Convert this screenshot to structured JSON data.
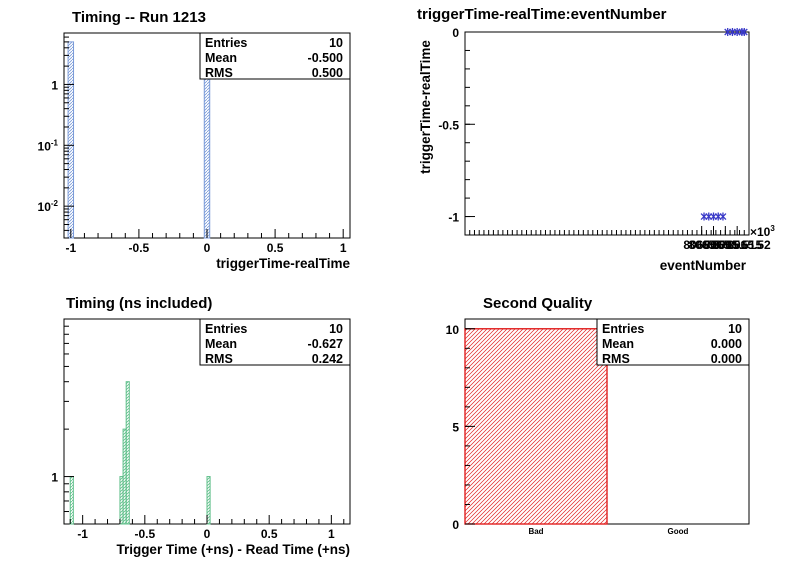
{
  "chart_data": [
    {
      "type": "bar",
      "title": "Timing -- Run 1213",
      "xlabel": "triggerTime-realTime",
      "ylabel": "",
      "log_y": true,
      "xlim": [
        -1.05,
        1.05
      ],
      "ylim": [
        0.003,
        7
      ],
      "xticks": [
        "-1",
        "-0.5",
        "0",
        "0.5",
        "1"
      ],
      "xtick_values": [
        -1,
        -0.5,
        0,
        0.5,
        1
      ],
      "yticks": [
        {
          "value": 0.01,
          "base": "10",
          "exp": "-2"
        },
        {
          "value": 0.1,
          "base": "10",
          "exp": "-1"
        },
        {
          "value": 1,
          "base": "1",
          "exp": ""
        }
      ],
      "bins": [
        {
          "x0": -1.02,
          "x1": -0.98,
          "value": 5
        },
        {
          "x0": -0.02,
          "x1": 0.02,
          "value": 5
        }
      ],
      "fill": "#ffffff",
      "line_color": "#7a9ad8",
      "hatch_color": "#7a9ad8",
      "stats": [
        {
          "label": "Entries",
          "value": "10"
        },
        {
          "label": "Mean",
          "value": "-0.500"
        },
        {
          "label": "RMS",
          "value": "0.500"
        }
      ]
    },
    {
      "type": "scatter",
      "title": "triggerTime-realTime:eventNumber",
      "xlabel": "eventNumber",
      "ylabel": "triggerTime-realTime",
      "xlim": [
        8065.4,
        8065.52
      ],
      "ylim": [
        -1.1,
        0
      ],
      "xticks": [
        "8065.5",
        "8065.505",
        "8065.51",
        "8065.515",
        "8065.52"
      ],
      "xtick_values": [
        8065.5,
        8065.505,
        8065.51,
        8065.515,
        8065.52
      ],
      "yticks": [
        "0",
        "-0.5",
        "-1"
      ],
      "ytick_values": [
        0,
        -0.5,
        -1
      ],
      "multiplier_base": "×10",
      "multiplier_exp": "3",
      "marker_color": "#3a3ac8",
      "points": [
        {
          "x": 8065.501,
          "y": -1
        },
        {
          "x": 8065.503,
          "y": -1
        },
        {
          "x": 8065.505,
          "y": -1
        },
        {
          "x": 8065.507,
          "y": -1
        },
        {
          "x": 8065.509,
          "y": -1
        },
        {
          "x": 8065.511,
          "y": 0
        },
        {
          "x": 8065.513,
          "y": 0
        },
        {
          "x": 8065.515,
          "y": 0
        },
        {
          "x": 8065.517,
          "y": 0
        },
        {
          "x": 8065.518,
          "y": 0
        }
      ]
    },
    {
      "type": "bar",
      "title": "Timing (ns included)",
      "xlabel": "Trigger Time (+ns) - Read Time (+ns)",
      "ylabel": "",
      "log_y": true,
      "xlim": [
        -1.15,
        1.15
      ],
      "ylim": [
        0.5,
        10
      ],
      "xticks": [
        "-1",
        "-0.5",
        "0",
        "0.5",
        "1"
      ],
      "xtick_values": [
        -1,
        -0.5,
        0,
        0.5,
        1
      ],
      "yticks": [
        {
          "value": 1,
          "base": "1",
          "exp": ""
        }
      ],
      "bins": [
        {
          "x0": -1.1,
          "x1": -1.075,
          "value": 1
        },
        {
          "x0": -0.7,
          "x1": -0.675,
          "value": 1
        },
        {
          "x0": -0.675,
          "x1": -0.65,
          "value": 2
        },
        {
          "x0": -0.65,
          "x1": -0.625,
          "value": 4
        },
        {
          "x0": 0,
          "x1": 0.025,
          "value": 1
        }
      ],
      "fill": "#ffffff",
      "line_color": "#5fbf8a",
      "hatch_color": "#5fbf8a",
      "stats": [
        {
          "label": "Entries",
          "value": "10"
        },
        {
          "label": "Mean",
          "value": "-0.627"
        },
        {
          "label": "RMS",
          "value": "0.242"
        }
      ]
    },
    {
      "type": "bar",
      "title": "Second Quality",
      "xlabel": "",
      "ylabel": "",
      "log_y": false,
      "categories": [
        "Bad",
        "Good"
      ],
      "values": [
        10,
        0
      ],
      "ylim": [
        0,
        10.5
      ],
      "yticks": [
        "0",
        "5",
        "10"
      ],
      "ytick_values": [
        0,
        5,
        10
      ],
      "line_color": "#e02020",
      "hatch_color": "#e02020",
      "stats": [
        {
          "label": "Entries",
          "value": "10"
        },
        {
          "label": "Mean",
          "value": "0.000"
        },
        {
          "label": "RMS",
          "value": "0.000"
        }
      ]
    }
  ]
}
